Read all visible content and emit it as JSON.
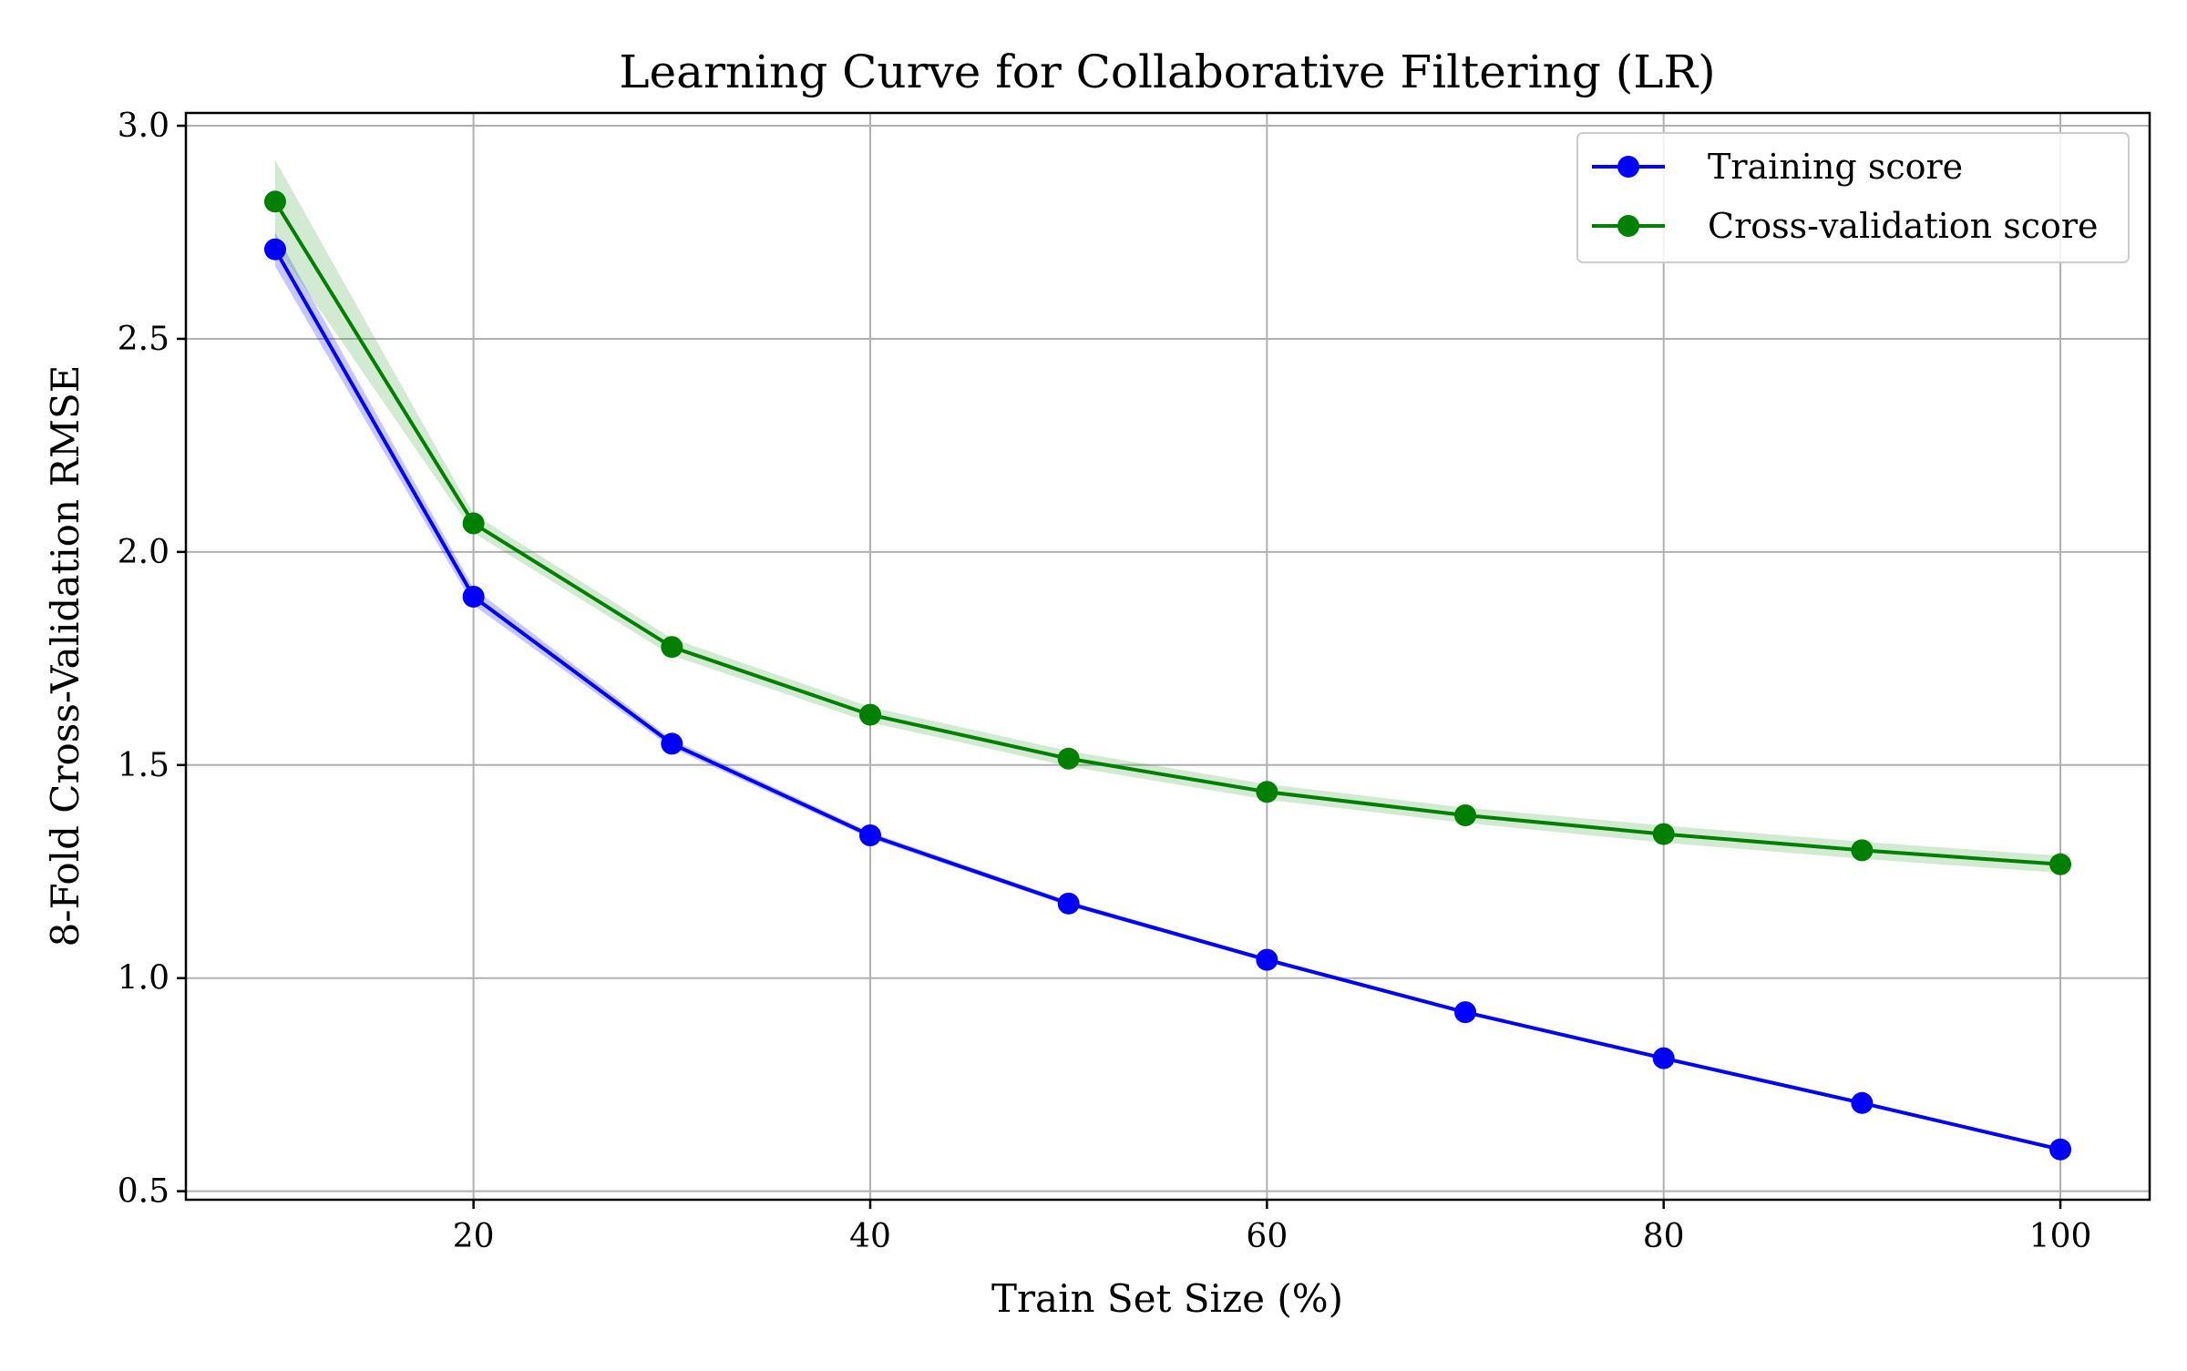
{
  "chart_data": {
    "type": "line",
    "title": "Learning Curve for Collaborative Filtering (LR)",
    "xlabel": "Train Set Size (%)",
    "ylabel": "8-Fold Cross-Validation RMSE",
    "xlim": [
      5.5,
      104.5
    ],
    "ylim": [
      0.48,
      3.03
    ],
    "xticks": [
      20,
      40,
      60,
      80,
      100
    ],
    "xtick_labels": [
      "20",
      "40",
      "60",
      "80",
      "100"
    ],
    "yticks": [
      0.5,
      1.0,
      1.5,
      2.0,
      2.5,
      3.0
    ],
    "ytick_labels": [
      "0.5",
      "1.0",
      "1.5",
      "2.0",
      "2.5",
      "3.0"
    ],
    "grid": true,
    "legend_position": "top-right",
    "x": [
      10,
      20,
      30,
      40,
      50,
      60,
      70,
      80,
      90,
      100
    ],
    "series": [
      {
        "name": "Training score",
        "color": "#0000ff",
        "band_color": "#0000ff",
        "values": [
          2.71,
          1.895,
          1.55,
          1.335,
          1.175,
          1.043,
          0.92,
          0.812,
          0.707,
          0.598
        ],
        "band_lower": [
          2.67,
          1.875,
          1.54,
          1.328,
          1.169,
          1.038,
          0.916,
          0.808,
          0.703,
          0.594
        ],
        "band_upper": [
          2.75,
          1.915,
          1.56,
          1.342,
          1.181,
          1.048,
          0.924,
          0.816,
          0.711,
          0.602
        ]
      },
      {
        "name": "Cross-validation score",
        "color": "#008000",
        "band_color": "#2ca02c",
        "values": [
          2.822,
          2.067,
          1.777,
          1.618,
          1.515,
          1.437,
          1.382,
          1.338,
          1.3,
          1.267
        ],
        "band_lower": [
          2.72,
          2.045,
          1.757,
          1.6,
          1.497,
          1.419,
          1.364,
          1.318,
          1.28,
          1.247
        ],
        "band_upper": [
          2.92,
          2.089,
          1.797,
          1.636,
          1.533,
          1.455,
          1.4,
          1.358,
          1.32,
          1.287
        ]
      }
    ]
  }
}
